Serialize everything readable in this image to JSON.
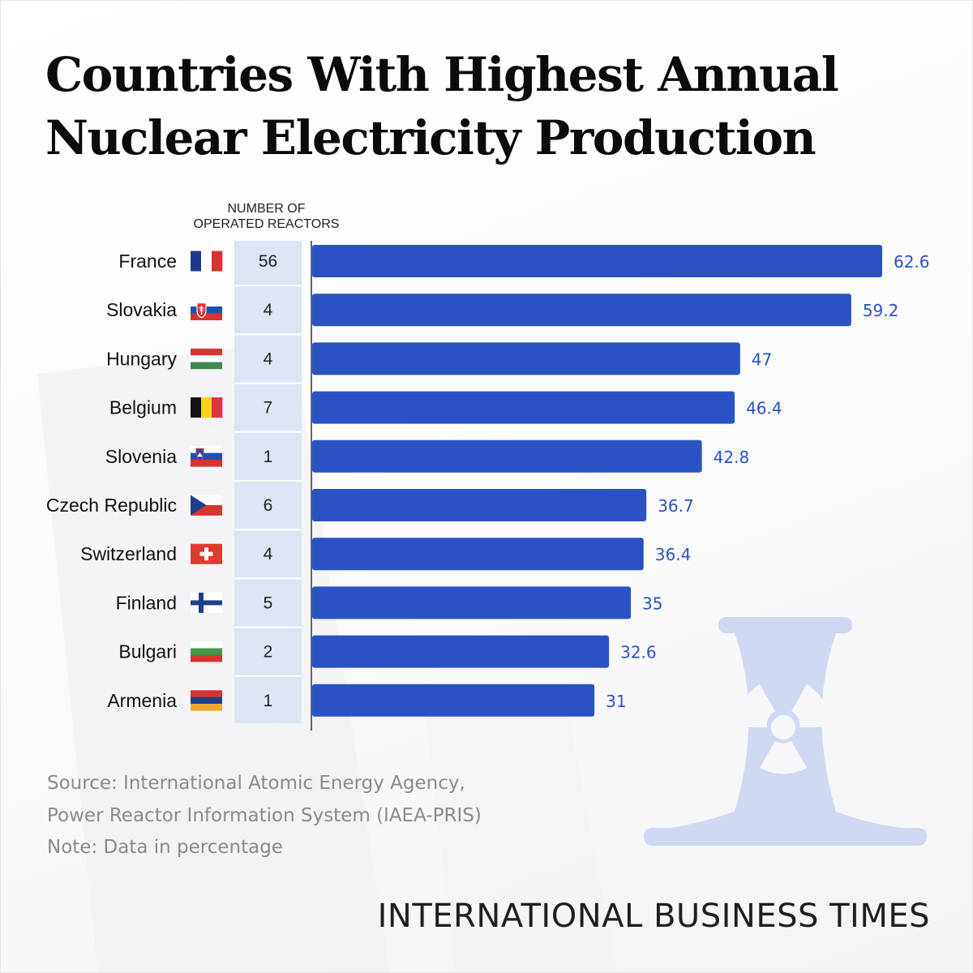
{
  "title_lines": [
    "Countries With Highest Annual",
    "Nuclear Electricity Production"
  ],
  "column_header_lines": [
    "NUMBER OF",
    "OPERATED REACTORS"
  ],
  "source_lines": [
    "Source: International Atomic Energy Agency,",
    "Power Reactor Information System (IAEA-PRIS)",
    "Note: Data in percentage"
  ],
  "brand": "INTERNATIONAL BUSINESS TIMES",
  "icons": {
    "background": "cooling-tower-radiation-icon"
  },
  "colors": {
    "bar": "#2b52c4",
    "value_label": "#2b52c4",
    "reactor_column": "#dde5f4",
    "axis": "#333333",
    "tower": "#ced8f0",
    "tower_symbol": "#f7f7f9"
  },
  "chart_data": {
    "type": "bar",
    "orientation": "horizontal",
    "xlim": [
      0,
      62.6
    ],
    "grid": false,
    "legend": "none",
    "categories": [
      "France",
      "Slovakia",
      "Hungary",
      "Belgium",
      "Slovenia",
      "Czech Republic",
      "Switzerland",
      "Finland",
      "Bulgari",
      "Armenia"
    ],
    "values": [
      62.6,
      59.2,
      47,
      46.4,
      42.8,
      36.7,
      36.4,
      35,
      32.6,
      31
    ],
    "value_labels": [
      "62.6",
      "59.2",
      "47",
      "46.4",
      "42.8",
      "36.7",
      "36.4",
      "35",
      "32.6",
      "31"
    ],
    "reactors": [
      "56",
      "4",
      "4",
      "7",
      "1",
      "6",
      "4",
      "5",
      "2",
      "1"
    ],
    "flags": [
      "france-flag-icon",
      "slovakia-flag-icon",
      "hungary-flag-icon",
      "belgium-flag-icon",
      "slovenia-flag-icon",
      "czech-republic-flag-icon",
      "switzerland-flag-icon",
      "finland-flag-icon",
      "bulgaria-flag-icon",
      "armenia-flag-icon"
    ]
  }
}
